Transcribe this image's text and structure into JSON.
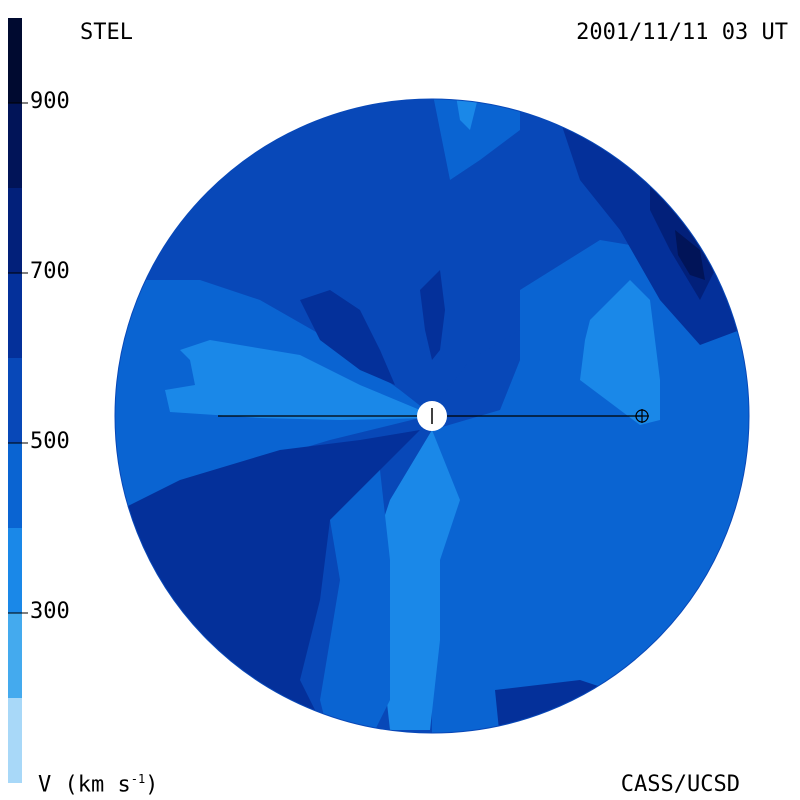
{
  "header": {
    "left_label": "STEL",
    "right_label": "2001/11/11 03 UT"
  },
  "footer": {
    "left_label_prefix": "V (km s",
    "left_label_sup": "-1",
    "left_label_suffix": ")",
    "right_label": "CASS/UCSD"
  },
  "colorbar": {
    "ticks": [
      "300",
      "500",
      "700",
      "900"
    ],
    "tick_values": [
      300,
      500,
      700,
      900
    ],
    "range": [
      100,
      1000
    ],
    "bands": [
      {
        "from": 100,
        "to": 200,
        "color": "#a8d8f8"
      },
      {
        "from": 200,
        "to": 300,
        "color": "#44aaee"
      },
      {
        "from": 300,
        "to": 400,
        "color": "#1a88e8"
      },
      {
        "from": 400,
        "to": 500,
        "color": "#0a64d2"
      },
      {
        "from": 500,
        "to": 600,
        "color": "#0848b8"
      },
      {
        "from": 600,
        "to": 700,
        "color": "#04309a"
      },
      {
        "from": 700,
        "to": 800,
        "color": "#02207a"
      },
      {
        "from": 800,
        "to": 900,
        "color": "#011458"
      },
      {
        "from": 900,
        "to": 1000,
        "color": "#000a30"
      }
    ]
  },
  "chart_data": {
    "type": "heatmap",
    "title": "",
    "quantity": "V (km s-1)",
    "colorbar_ticks": [
      300,
      500,
      700,
      900
    ],
    "colors": {
      "disk_background": "#0a64d2",
      "fast_region": "#04309a",
      "slow_region": "#1a88e8"
    }
  }
}
